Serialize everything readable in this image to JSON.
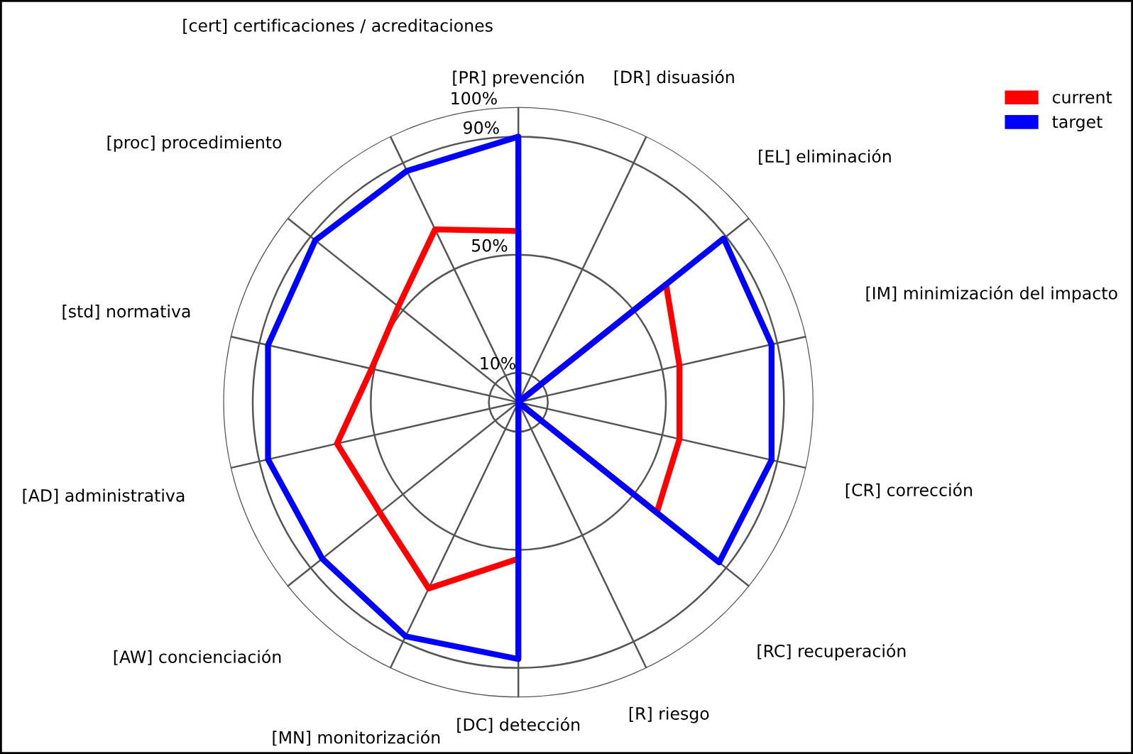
{
  "chart_data": {
    "type": "radar",
    "categories": [
      "[PR] prevención",
      "[DR] disuasión",
      "[EL] eliminación",
      "[IM] minimización del impacto",
      "[CR] corrección",
      "[RC] recuperación",
      "[R] riesgo",
      "[DC] detección",
      "[MN] monitorización",
      "[AW] concienciación",
      "[AD] administrativa",
      "[std] normativa",
      "[proc] procedimiento",
      "[cert] certificaciones / acreditaciones"
    ],
    "series": [
      {
        "name": "current",
        "color": "#ff0000",
        "values": [
          58,
          0,
          64,
          56,
          56,
          60,
          0,
          53,
          70,
          60,
          63,
          51,
          52,
          65
        ]
      },
      {
        "name": "target",
        "color": "#0000ff",
        "values": [
          90,
          0,
          89,
          88,
          88,
          87,
          0,
          87,
          88,
          85,
          87,
          87,
          88,
          87
        ]
      }
    ],
    "ylim": [
      0,
      100
    ],
    "yticks": [
      {
        "value": 10,
        "label": "10%"
      },
      {
        "value": 50,
        "label": "50%"
      },
      {
        "value": 90,
        "label": "90%"
      },
      {
        "value": 100,
        "label": "100%"
      }
    ],
    "grid": true,
    "legend": "top right",
    "marker": "none",
    "line_style": "solid"
  }
}
